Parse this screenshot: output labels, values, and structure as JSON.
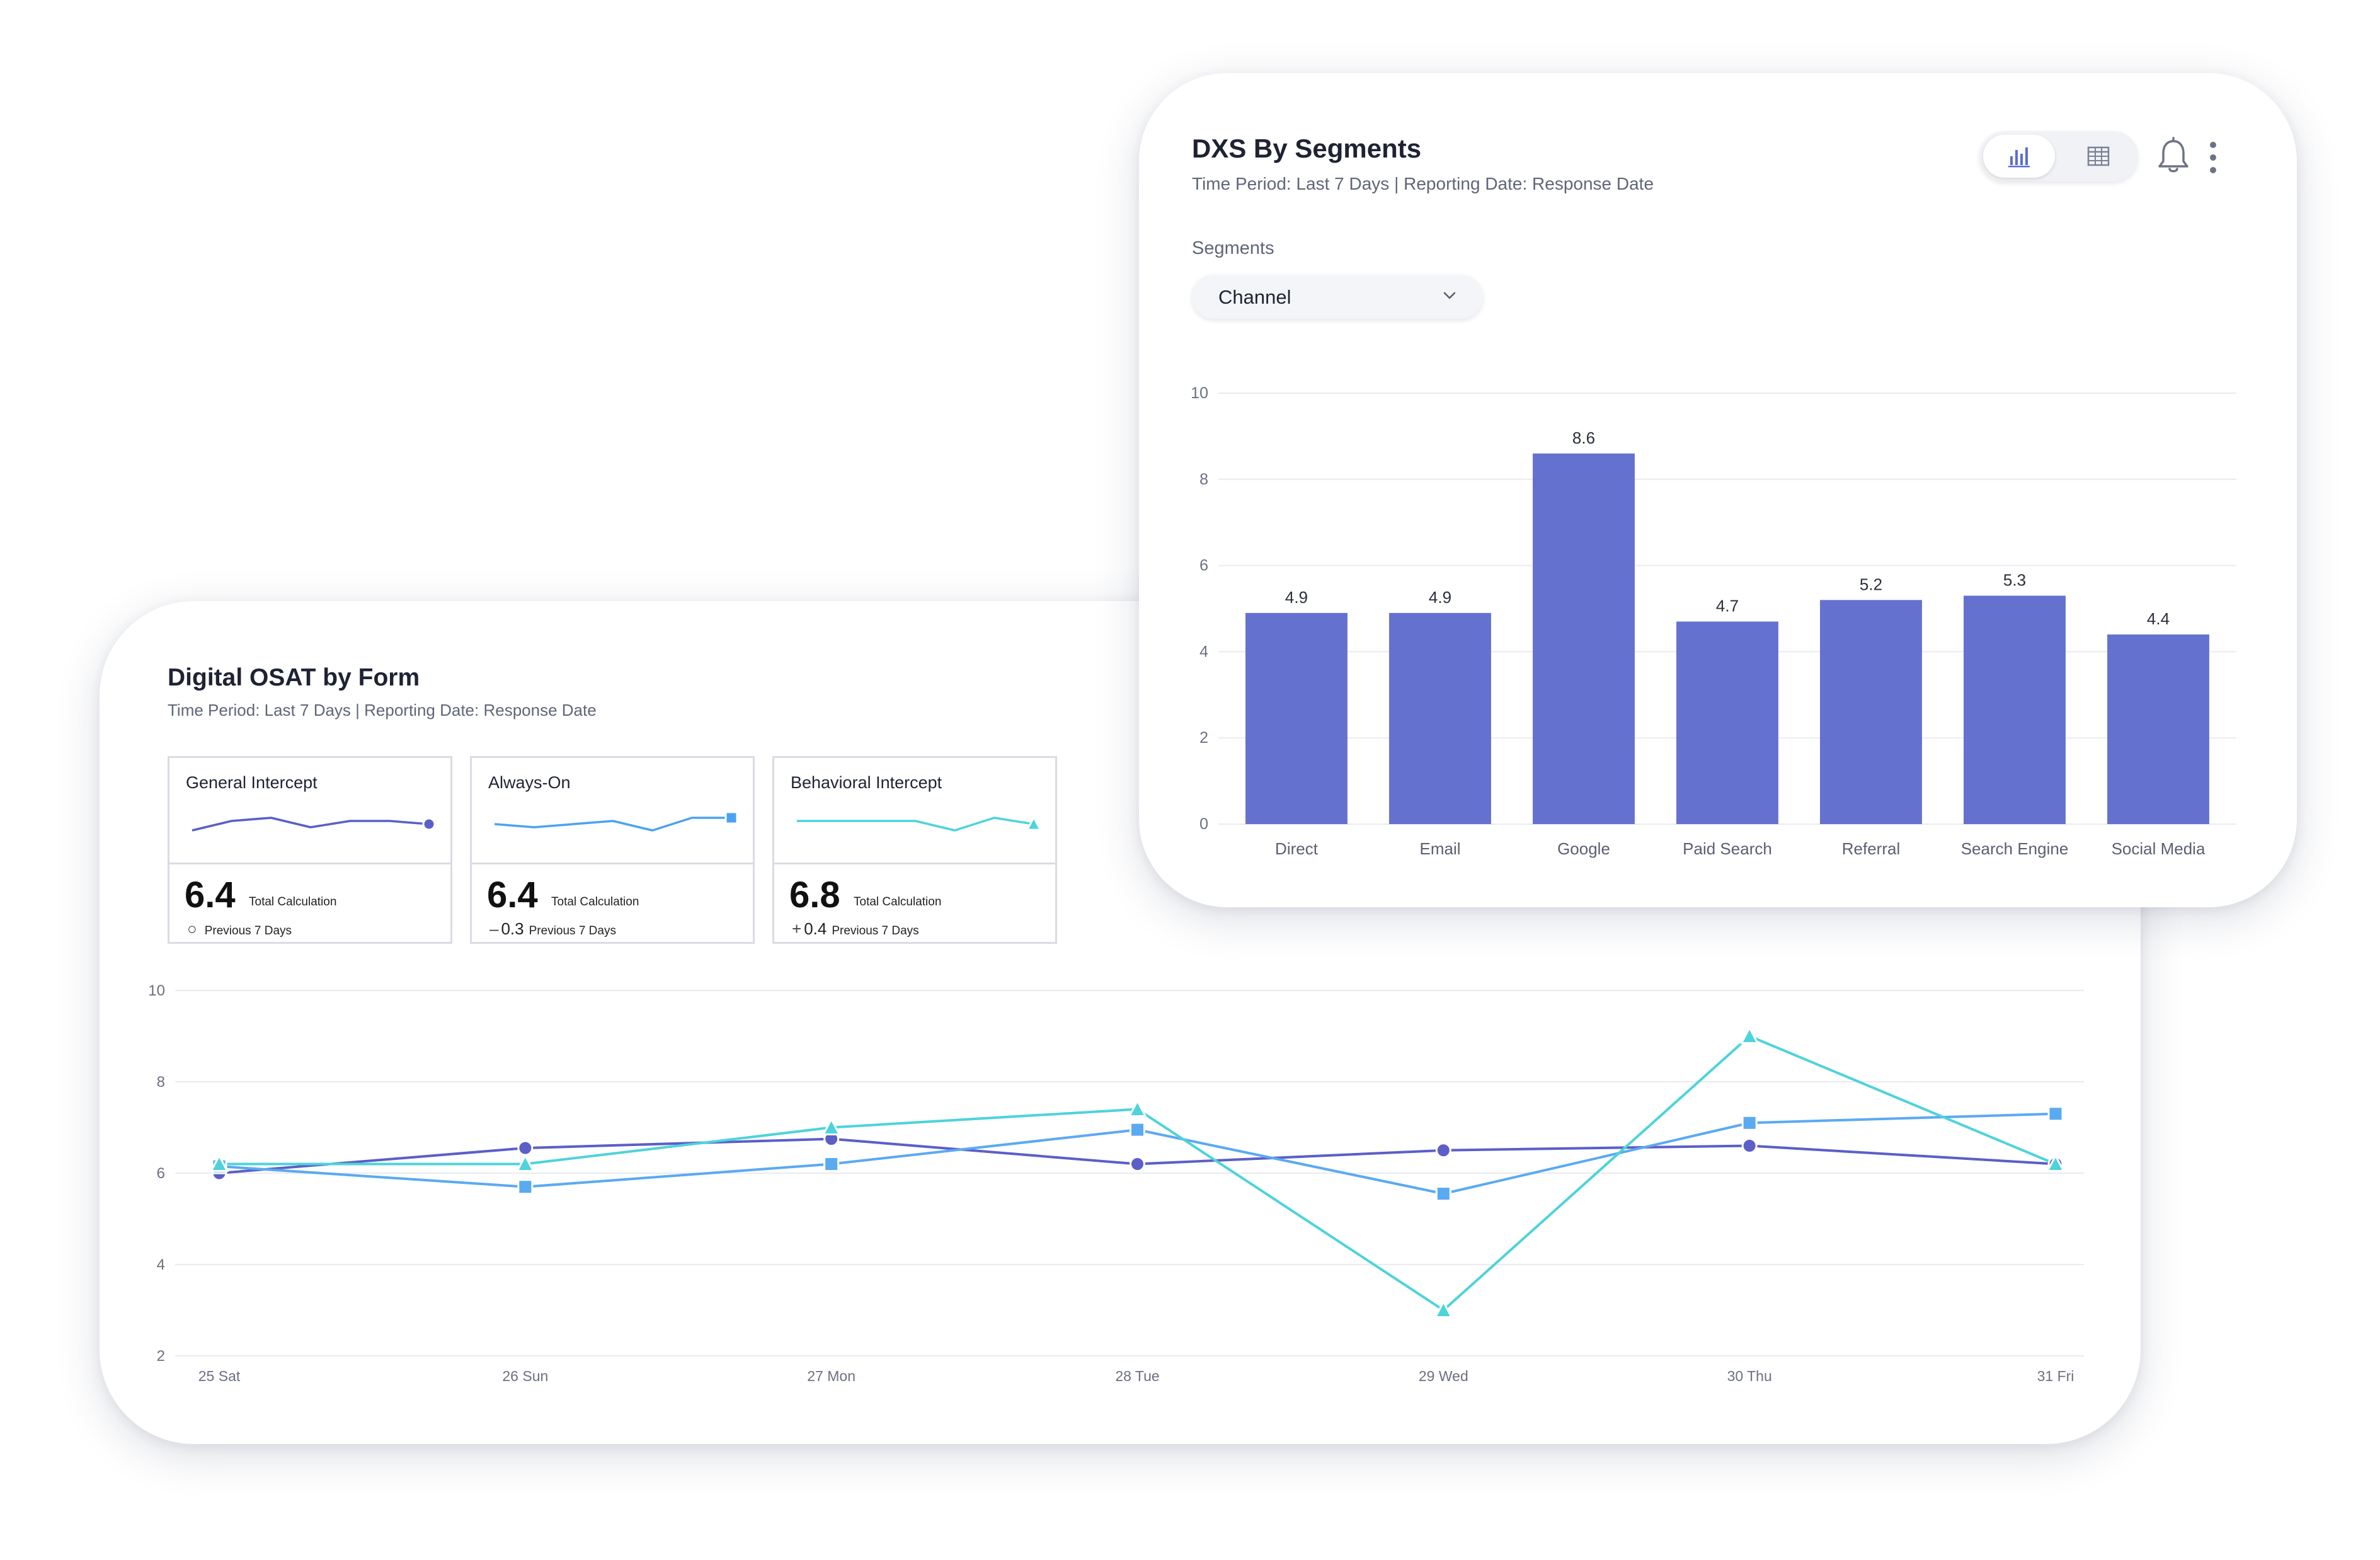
{
  "osat_card": {
    "title": "Digital OSAT by Form",
    "subtitle": "Time Period: Last 7 Days | Reporting Date: Response Date",
    "metrics": [
      {
        "label": "General Intercept",
        "value": "6.4",
        "caption": "Total Calculation",
        "delta": "",
        "delta_symbol": "○",
        "delta_caption": "Previous 7 Days",
        "color": "#5b5fc7",
        "marker": "circle",
        "spark": [
          3,
          6,
          7,
          4,
          6,
          6,
          5
        ]
      },
      {
        "label": "Always-On",
        "value": "6.4",
        "caption": "Total Calculation",
        "delta": "0.3",
        "delta_symbol": "–",
        "delta_caption": "Previous 7 Days",
        "color": "#4aa3f0",
        "marker": "square",
        "spark": [
          5,
          4,
          5,
          6,
          3,
          7,
          7
        ]
      },
      {
        "label": "Behavioral Intercept",
        "value": "6.8",
        "caption": "Total Calculation",
        "delta": "0.4",
        "delta_symbol": "+",
        "delta_caption": "Previous 7 Days",
        "color": "#4dd3db",
        "marker": "triangle",
        "spark": [
          6,
          6,
          6,
          6,
          3,
          7,
          5
        ]
      }
    ]
  },
  "chart_data": [
    {
      "type": "line",
      "x": [
        "25 Sat",
        "26 Sun",
        "27 Mon",
        "28 Tue",
        "29 Wed",
        "30 Thu",
        "31 Fri"
      ],
      "ylim": [
        2,
        10
      ],
      "yticks": [
        "2",
        "4",
        "6",
        "8",
        "10"
      ],
      "grid": true,
      "series": [
        {
          "values": [
            6.0,
            6.55,
            6.75,
            6.2,
            6.5,
            6.6,
            6.2
          ],
          "color": "#5b5fc7",
          "marker": "circle"
        },
        {
          "values": [
            6.15,
            5.7,
            6.2,
            6.95,
            5.55,
            7.1,
            7.3
          ],
          "color": "#5aaaf2",
          "marker": "square"
        },
        {
          "values": [
            6.2,
            6.2,
            7.0,
            7.4,
            3.0,
            9.0,
            6.2
          ],
          "color": "#4dd3db",
          "marker": "triangle"
        }
      ]
    },
    {
      "type": "bar",
      "title": "DXS By Segments",
      "subtitle": "Time Period: Last 7 Days | Reporting Date: Response Date",
      "categories": [
        "Direct",
        "Email",
        "Google",
        "Paid Search",
        "Referral",
        "Search Engine",
        "Social Media"
      ],
      "values": [
        4.9,
        4.9,
        8.6,
        4.7,
        5.2,
        5.3,
        4.4
      ],
      "value_labels": [
        "4.9",
        "4.9",
        "8.6",
        "4.7",
        "5.2",
        "5.3",
        "4.4"
      ],
      "ylim": [
        0,
        10
      ],
      "yticks": [
        "0",
        "2",
        "4",
        "6",
        "8",
        "10"
      ],
      "grid": true,
      "bar_color": "#6471cf"
    }
  ],
  "dxs_card": {
    "segments_label": "Segments",
    "segment_value": "Channel",
    "icons": [
      "bar-chart-icon",
      "table-icon",
      "bell-icon",
      "more-vertical-icon"
    ]
  }
}
